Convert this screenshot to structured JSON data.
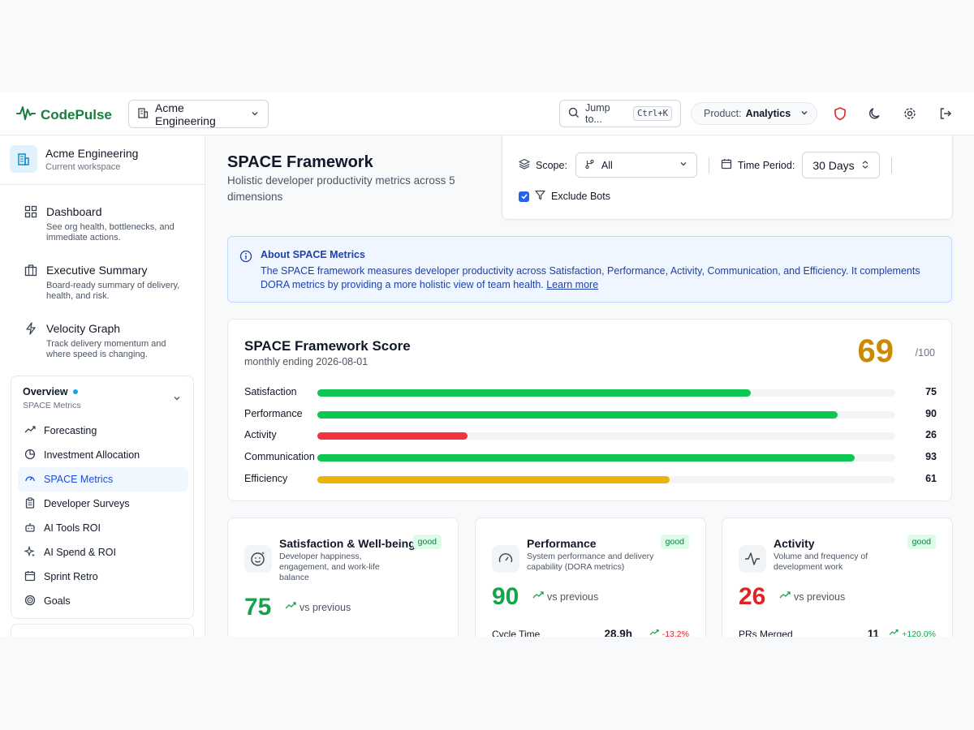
{
  "header": {
    "logo": "CodePulse",
    "org": "Acme Engineering",
    "jump_label": "Jump to...",
    "jump_shortcut": "Ctrl+K",
    "product_label": "Product:",
    "product_value": "Analytics"
  },
  "sidebar": {
    "workspace_name": "Acme Engineering",
    "workspace_sub": "Current workspace",
    "nav": [
      {
        "title": "Dashboard",
        "desc": "See org health, bottlenecks, and immediate actions."
      },
      {
        "title": "Executive Summary",
        "desc": "Board-ready summary of delivery, health, and risk."
      },
      {
        "title": "Velocity Graph",
        "desc": "Track delivery momentum and where speed is changing."
      }
    ],
    "group": {
      "title": "Overview",
      "subtitle": "SPACE Metrics",
      "items": [
        "Forecasting",
        "Investment Allocation",
        "SPACE Metrics",
        "Developer Surveys",
        "AI Tools ROI",
        "AI Spend & ROI",
        "Sprint Retro",
        "Goals"
      ]
    }
  },
  "page": {
    "title": "SPACE Framework",
    "subtitle": "Holistic developer productivity metrics across 5 dimensions"
  },
  "filters": {
    "scope_label": "Scope:",
    "scope_value": "All",
    "period_label": "Time Period:",
    "period_value": "30 Days",
    "exclude_bots_label": "Exclude Bots",
    "exclude_bots_checked": true
  },
  "info": {
    "title": "About SPACE Metrics",
    "body": "The SPACE framework measures developer productivity across Satisfaction, Performance, Activity, Communication, and Efficiency. It complements DORA metrics by providing a more holistic view of team health.",
    "link": "Learn more"
  },
  "score_card": {
    "title": "SPACE Framework Score",
    "subtitle": "monthly ending 2026-08-01",
    "score": "69",
    "max": "/100",
    "score_color": "#ca8a04",
    "dimensions": [
      {
        "label": "Satisfaction",
        "value": 75,
        "color": "#10c653"
      },
      {
        "label": "Performance",
        "value": 90,
        "color": "#10c653"
      },
      {
        "label": "Activity",
        "value": 26,
        "color": "#f5333f"
      },
      {
        "label": "Communication",
        "value": 93,
        "color": "#10c653"
      },
      {
        "label": "Efficiency",
        "value": 61,
        "color": "#eab308"
      }
    ]
  },
  "cards": [
    {
      "title": "Satisfaction & Well-being",
      "desc": "Developer happiness, engagement, and work-life balance",
      "badge": "good",
      "score": "75",
      "score_color": "#16a34a",
      "vs": "vs previous",
      "icon": "smile-icon"
    },
    {
      "title": "Performance",
      "desc": "System performance and delivery capability (DORA metrics)",
      "badge": "good",
      "score": "90",
      "score_color": "#16a34a",
      "vs": "vs previous",
      "metric_label": "Cycle Time",
      "metric_value": "28.9h",
      "metric_change": "-13.2%",
      "metric_change_color": "#dc2626",
      "icon": "gauge-icon"
    },
    {
      "title": "Activity",
      "desc": "Volume and frequency of development work",
      "badge": "good",
      "score": "26",
      "score_color": "#dc2626",
      "vs": "vs previous",
      "metric_label": "PRs Merged",
      "metric_value": "11",
      "metric_change": "+120.0%",
      "metric_change_color": "#16a34a",
      "icon": "activity-icon"
    }
  ]
}
